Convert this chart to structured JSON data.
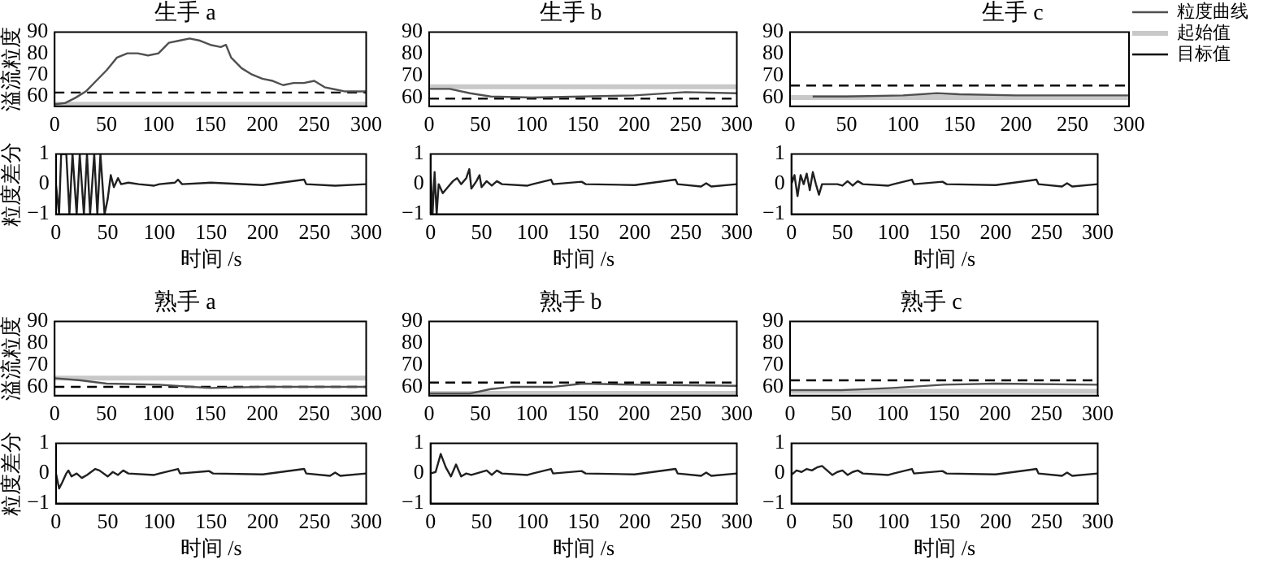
{
  "chart_data": [
    {
      "type": "line",
      "title": "生手 a",
      "ylabel": "溢流粒度",
      "xlim": [
        0,
        300
      ],
      "xticks": [
        0,
        50,
        100,
        150,
        200,
        250,
        300
      ],
      "ylim": [
        55,
        90
      ],
      "yticks": [
        60,
        70,
        80,
        90
      ],
      "series": [
        {
          "color": "#505050",
          "x": [
            0,
            10,
            20,
            30,
            40,
            50,
            55,
            60,
            70,
            80,
            90,
            100,
            110,
            120,
            130,
            140,
            150,
            160,
            165,
            170,
            180,
            190,
            200,
            210,
            220,
            230,
            240,
            250,
            260,
            270,
            280,
            300
          ],
          "values": [
            56,
            56.5,
            59,
            62,
            67,
            72,
            75,
            78,
            80,
            80,
            79,
            80,
            85,
            86,
            87,
            86,
            84,
            83,
            84,
            78,
            73,
            70,
            68,
            67,
            65,
            66,
            66,
            67,
            64,
            63,
            62,
            62
          ]
        },
        {
          "color": "#c8c8c8",
          "x": [
            0,
            300
          ],
          "values": [
            56,
            56
          ]
        },
        {
          "color": "#000000",
          "line_style": "dashed",
          "x": [
            0,
            300
          ],
          "values": [
            61.5,
            61.5
          ]
        }
      ]
    },
    {
      "type": "line",
      "title": "生手 b",
      "xlim": [
        0,
        300
      ],
      "xticks": [
        0,
        50,
        100,
        150,
        200,
        250,
        300
      ],
      "ylim": [
        56,
        90
      ],
      "yticks": [
        60,
        70,
        80,
        90
      ],
      "series": [
        {
          "color": "#505050",
          "x": [
            0,
            20,
            40,
            60,
            100,
            150,
            200,
            250,
            300
          ],
          "values": [
            64,
            64,
            62,
            60.5,
            60,
            60.5,
            61,
            62.5,
            62
          ]
        },
        {
          "color": "#c8c8c8",
          "x": [
            0,
            300
          ],
          "values": [
            65,
            65
          ]
        },
        {
          "color": "#000000",
          "line_style": "dashed",
          "x": [
            0,
            300
          ],
          "values": [
            59.5,
            59.5
          ]
        }
      ]
    },
    {
      "type": "line",
      "title": "生手 c",
      "legend": "right",
      "xlim": [
        0,
        300
      ],
      "xticks": [
        0,
        50,
        100,
        150,
        200,
        250,
        300
      ],
      "ylim": [
        56,
        90
      ],
      "yticks": [
        60,
        70,
        80,
        90
      ],
      "series": [
        {
          "name": "粒度曲线",
          "color": "#505050",
          "x": [
            20,
            50,
            100,
            130,
            150,
            200,
            300
          ],
          "values": [
            60.5,
            60.5,
            61,
            62,
            61.5,
            61,
            61
          ]
        },
        {
          "name": "起始值",
          "color": "#c8c8c8",
          "x": [
            0,
            300
          ],
          "values": [
            60,
            60
          ]
        },
        {
          "name": "目标值",
          "color": "#000000",
          "line_style": "dashed",
          "x": [
            0,
            300
          ],
          "values": [
            65.5,
            65.5
          ]
        }
      ]
    },
    {
      "type": "line",
      "ylabel": "粒度差分",
      "xlabel": "时间 /s",
      "xlim": [
        0,
        300
      ],
      "xticks": [
        0,
        50,
        100,
        150,
        200,
        250,
        300
      ],
      "ylim": [
        -1,
        1
      ],
      "yticks": [
        -1,
        0,
        1
      ],
      "series": [
        {
          "color": "#202020",
          "x": [
            0,
            3,
            5,
            10,
            13,
            16,
            20,
            23,
            27,
            30,
            33,
            37,
            40,
            43,
            47,
            50,
            53,
            56,
            60,
            63,
            70,
            80,
            95,
            100,
            115,
            118,
            122,
            150,
            200,
            240,
            242,
            270,
            300
          ],
          "values": [
            0,
            -1,
            1,
            1,
            -1,
            1,
            -1,
            1,
            -1,
            1,
            -1,
            1,
            -1,
            1,
            -1,
            -0.5,
            0.3,
            -0.1,
            0.2,
            0,
            0.05,
            0,
            -0.05,
            0,
            0.05,
            0.15,
            0,
            0.05,
            -0.03,
            0.15,
            0,
            -0.05,
            0
          ]
        }
      ]
    },
    {
      "type": "line",
      "xlabel": "时间 /s",
      "xlim": [
        0,
        300
      ],
      "xticks": [
        0,
        50,
        100,
        150,
        200,
        250,
        300
      ],
      "ylim": [
        -1,
        1
      ],
      "yticks": [
        -1,
        0,
        1
      ],
      "series": [
        {
          "color": "#202020",
          "x": [
            0,
            2,
            4,
            6,
            8,
            12,
            17,
            22,
            26,
            30,
            35,
            38,
            40,
            45,
            48,
            50,
            55,
            60,
            65,
            70,
            95,
            100,
            118,
            120,
            148,
            152,
            200,
            240,
            242,
            265,
            270,
            275,
            300
          ],
          "values": [
            0.5,
            -1,
            0.4,
            -1,
            0,
            -0.3,
            -0.1,
            0.1,
            0.2,
            0,
            0.2,
            0.5,
            -0.15,
            0.1,
            0.3,
            -0.1,
            0.1,
            -0.05,
            0.1,
            0,
            -0.05,
            0,
            0.15,
            0,
            0.08,
            0,
            -0.03,
            0.15,
            0,
            -0.08,
            0.03,
            -0.08,
            0
          ]
        }
      ]
    },
    {
      "type": "line",
      "xlabel": "时间 /s",
      "xlim": [
        0,
        300
      ],
      "xticks": [
        0,
        50,
        100,
        150,
        200,
        250,
        300
      ],
      "ylim": [
        -1,
        1
      ],
      "yticks": [
        -1,
        0,
        1
      ],
      "series": [
        {
          "color": "#202020",
          "x": [
            0,
            3,
            6,
            9,
            12,
            15,
            18,
            21,
            24,
            27,
            30,
            45,
            50,
            55,
            60,
            65,
            70,
            95,
            100,
            118,
            120,
            148,
            152,
            200,
            240,
            242,
            265,
            270,
            275,
            300
          ],
          "values": [
            0,
            0.3,
            -0.4,
            0.3,
            0,
            0.35,
            -0.2,
            0.4,
            0,
            -0.35,
            0,
            0,
            -0.05,
            0.1,
            -0.05,
            0.1,
            0,
            -0.05,
            0,
            0.15,
            0,
            0.08,
            0,
            -0.03,
            0.15,
            0,
            -0.08,
            0.03,
            -0.08,
            0
          ]
        }
      ]
    },
    {
      "type": "line",
      "title": "熟手 a",
      "ylabel": "溢流粒度",
      "xlim": [
        0,
        300
      ],
      "xticks": [
        0,
        50,
        100,
        150,
        200,
        250,
        300
      ],
      "ylim": [
        56,
        90
      ],
      "yticks": [
        60,
        70,
        80,
        90
      ],
      "series": [
        {
          "color": "#505050",
          "x": [
            0,
            25,
            50,
            100,
            150,
            200,
            300
          ],
          "values": [
            64,
            63,
            61.5,
            61,
            59.5,
            60,
            60
          ]
        },
        {
          "color": "#c8c8c8",
          "x": [
            0,
            300
          ],
          "values": [
            64,
            64
          ]
        },
        {
          "color": "#000000",
          "line_style": "dashed",
          "x": [
            0,
            300
          ],
          "values": [
            60,
            60
          ]
        }
      ]
    },
    {
      "type": "line",
      "title": "熟手 b",
      "xlim": [
        0,
        300
      ],
      "xticks": [
        0,
        50,
        100,
        150,
        200,
        250,
        300
      ],
      "ylim": [
        56,
        90
      ],
      "yticks": [
        60,
        70,
        80,
        90
      ],
      "series": [
        {
          "color": "#505050",
          "x": [
            0,
            40,
            60,
            80,
            120,
            150,
            200,
            300
          ],
          "values": [
            57,
            57,
            59,
            60,
            60,
            61.5,
            61,
            60.5
          ]
        },
        {
          "color": "#c8c8c8",
          "x": [
            0,
            300
          ],
          "values": [
            57,
            57
          ]
        },
        {
          "color": "#000000",
          "line_style": "dashed",
          "x": [
            0,
            300
          ],
          "values": [
            62,
            62
          ]
        }
      ]
    },
    {
      "type": "line",
      "title": "熟手 c",
      "xlim": [
        0,
        300
      ],
      "xticks": [
        0,
        50,
        100,
        150,
        200,
        250,
        300
      ],
      "ylim": [
        56,
        90
      ],
      "yticks": [
        60,
        70,
        80,
        90
      ],
      "series": [
        {
          "color": "#505050",
          "x": [
            0,
            50,
            100,
            150,
            200,
            300
          ],
          "values": [
            58.5,
            58.5,
            59.5,
            61,
            61.5,
            61
          ]
        },
        {
          "color": "#c8c8c8",
          "x": [
            0,
            300
          ],
          "values": [
            58,
            58
          ]
        },
        {
          "color": "#000000",
          "line_style": "dashed",
          "x": [
            0,
            300
          ],
          "values": [
            63,
            63
          ]
        }
      ]
    },
    {
      "type": "line",
      "ylabel": "粒度差分",
      "xlabel": "时间 /s",
      "xlim": [
        0,
        300
      ],
      "xticks": [
        0,
        50,
        100,
        150,
        200,
        250,
        300
      ],
      "ylim": [
        -1,
        1
      ],
      "yticks": [
        -1,
        0,
        1
      ],
      "series": [
        {
          "color": "#202020",
          "x": [
            0,
            3,
            6,
            10,
            12,
            15,
            20,
            25,
            30,
            38,
            42,
            50,
            55,
            60,
            65,
            70,
            95,
            100,
            118,
            120,
            148,
            152,
            200,
            240,
            242,
            265,
            270,
            275,
            300
          ],
          "values": [
            0,
            -0.5,
            -0.3,
            0,
            0.1,
            -0.1,
            0,
            -0.15,
            -0.05,
            0.15,
            0.1,
            -0.1,
            0.05,
            -0.05,
            0.1,
            0,
            -0.05,
            0,
            0.15,
            0,
            0.08,
            0,
            -0.03,
            0.15,
            0,
            -0.08,
            0.03,
            -0.08,
            0
          ]
        }
      ]
    },
    {
      "type": "line",
      "xlabel": "时间 /s",
      "xlim": [
        0,
        300
      ],
      "xticks": [
        0,
        50,
        100,
        150,
        200,
        250,
        300
      ],
      "ylim": [
        -1,
        1
      ],
      "yticks": [
        -1,
        0,
        1
      ],
      "series": [
        {
          "color": "#202020",
          "x": [
            0,
            5,
            10,
            15,
            20,
            25,
            30,
            35,
            40,
            55,
            60,
            65,
            70,
            95,
            100,
            118,
            120,
            148,
            152,
            200,
            240,
            242,
            265,
            270,
            275,
            300
          ],
          "values": [
            0,
            0.05,
            0.65,
            0.2,
            -0.1,
            0.3,
            -0.1,
            0,
            -0.05,
            0.1,
            -0.05,
            0.1,
            0,
            -0.05,
            0,
            0.15,
            0,
            0.08,
            0,
            -0.03,
            0.15,
            0,
            -0.08,
            0.03,
            -0.08,
            0
          ]
        }
      ]
    },
    {
      "type": "line",
      "xlabel": "时间 /s",
      "xlim": [
        0,
        300
      ],
      "xticks": [
        0,
        50,
        100,
        150,
        200,
        250,
        300
      ],
      "ylim": [
        -1,
        1
      ],
      "yticks": [
        -1,
        0,
        1
      ],
      "series": [
        {
          "color": "#202020",
          "x": [
            0,
            5,
            10,
            15,
            20,
            25,
            30,
            35,
            40,
            45,
            50,
            55,
            60,
            65,
            70,
            95,
            100,
            118,
            120,
            148,
            152,
            200,
            240,
            242,
            265,
            270,
            275,
            300
          ],
          "values": [
            -0.05,
            0.1,
            0.05,
            0.15,
            0.1,
            0.2,
            0.25,
            0.1,
            -0.05,
            0.05,
            0.1,
            -0.05,
            0.05,
            0.1,
            0,
            -0.05,
            0,
            0.15,
            0,
            0.08,
            0,
            -0.03,
            0.15,
            0,
            -0.08,
            0.03,
            -0.08,
            0
          ]
        }
      ]
    }
  ]
}
